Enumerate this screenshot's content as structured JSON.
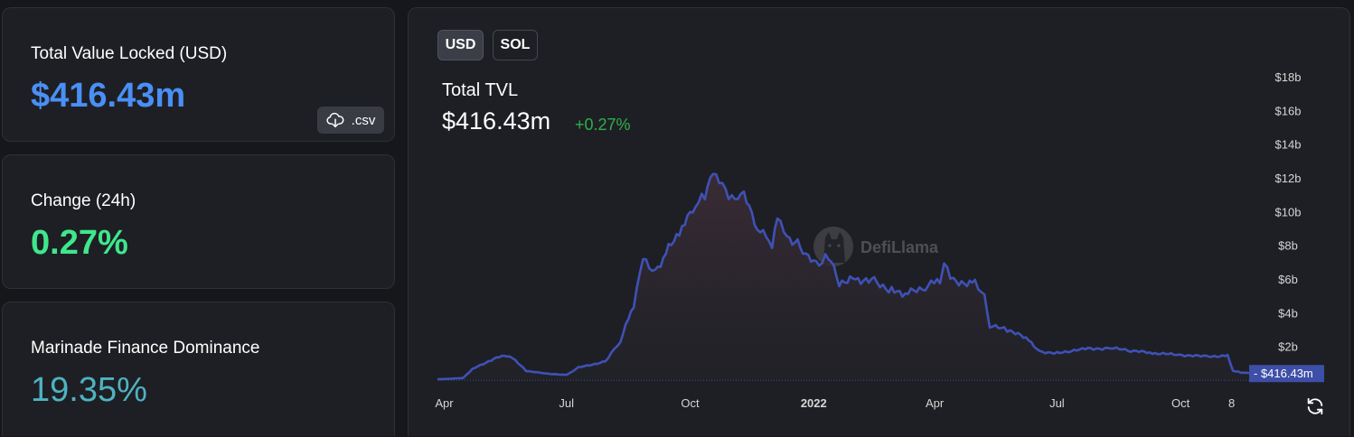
{
  "cards": {
    "tvl": {
      "label": "Total Value Locked (USD)",
      "value": "$416.43m",
      "csv_label": ".csv"
    },
    "change": {
      "label": "Change (24h)",
      "value": "0.27%"
    },
    "dominance": {
      "label": "Marinade Finance Dominance",
      "value": "19.35%"
    }
  },
  "toggles": {
    "usd": "USD",
    "sol": "SOL"
  },
  "header": {
    "title": "Total TVL",
    "value": "$416.43m",
    "change": "+0.27%"
  },
  "watermark": "DefiLlama",
  "colors": {
    "tvl_blue": "#4a8ff5",
    "change_green": "#3fe78c",
    "dominance_teal": "#4eb3c2",
    "line": "#3f51b5",
    "price_tag": "#3e4fa8",
    "positive": "#2eaf4a"
  },
  "icons": {
    "csv": "cloud-download-icon",
    "refresh": "refresh-icon",
    "logo": "llama-logo-icon"
  },
  "chart_data": {
    "type": "area",
    "title": "",
    "xlabel": "",
    "ylabel": "",
    "unit": "USD",
    "ylim": [
      0,
      18000000000
    ],
    "yticks": [
      "$2b",
      "$4b",
      "$6b",
      "$8b",
      "$10b",
      "$12b",
      "$14b",
      "$16b",
      "$18b"
    ],
    "xticks": [
      {
        "label": "Apr",
        "date": "2021-04-01"
      },
      {
        "label": "Jul",
        "date": "2021-07-01"
      },
      {
        "label": "Oct",
        "date": "2021-10-01"
      },
      {
        "label": "2022",
        "date": "2022-01-01",
        "bold": true
      },
      {
        "label": "Apr",
        "date": "2022-04-01"
      },
      {
        "label": "Jul",
        "date": "2022-07-01"
      },
      {
        "label": "Oct",
        "date": "2022-10-01"
      },
      {
        "label": "8",
        "date": "2022-11-08"
      }
    ],
    "price_label": "$416.43m",
    "last_value": 416430000,
    "series": [
      {
        "values": [
          [
            "2021-03-27",
            0.05
          ],
          [
            "2021-04-15",
            0.12
          ],
          [
            "2021-04-22",
            0.65
          ],
          [
            "2021-05-10",
            1.35
          ],
          [
            "2021-05-20",
            1.45
          ],
          [
            "2021-06-01",
            0.55
          ],
          [
            "2021-06-15",
            0.4
          ],
          [
            "2021-07-01",
            0.3
          ],
          [
            "2021-07-10",
            0.75
          ],
          [
            "2021-07-30",
            1.1
          ],
          [
            "2021-08-10",
            2.3
          ],
          [
            "2021-08-20",
            4.5
          ],
          [
            "2021-08-27",
            7.3
          ],
          [
            "2021-09-05",
            6.4
          ],
          [
            "2021-09-15",
            7.8
          ],
          [
            "2021-09-25",
            9.0
          ],
          [
            "2021-10-05",
            10.4
          ],
          [
            "2021-10-12",
            11.0
          ],
          [
            "2021-10-18",
            12.4
          ],
          [
            "2021-10-25",
            11.6
          ],
          [
            "2021-11-01",
            10.7
          ],
          [
            "2021-11-10",
            11.0
          ],
          [
            "2021-11-20",
            9.0
          ],
          [
            "2021-12-01",
            8.1
          ],
          [
            "2021-12-05",
            9.8
          ],
          [
            "2021-12-12",
            8.5
          ],
          [
            "2021-12-20",
            8.1
          ],
          [
            "2021-12-28",
            7.2
          ],
          [
            "2022-01-05",
            6.8
          ],
          [
            "2022-01-12",
            7.4
          ],
          [
            "2022-01-20",
            5.8
          ],
          [
            "2022-02-01",
            6.0
          ],
          [
            "2022-02-15",
            5.9
          ],
          [
            "2022-02-28",
            5.3
          ],
          [
            "2022-03-10",
            5.1
          ],
          [
            "2022-03-25",
            5.5
          ],
          [
            "2022-04-05",
            6.0
          ],
          [
            "2022-04-08",
            7.0
          ],
          [
            "2022-04-15",
            5.9
          ],
          [
            "2022-05-01",
            5.7
          ],
          [
            "2022-05-08",
            5.0
          ],
          [
            "2022-05-12",
            3.2
          ],
          [
            "2022-05-25",
            3.0
          ],
          [
            "2022-06-10",
            2.4
          ],
          [
            "2022-06-18",
            1.7
          ],
          [
            "2022-07-01",
            1.6
          ],
          [
            "2022-07-20",
            1.85
          ],
          [
            "2022-08-10",
            1.9
          ],
          [
            "2022-08-25",
            1.75
          ],
          [
            "2022-09-10",
            1.6
          ],
          [
            "2022-09-30",
            1.5
          ],
          [
            "2022-10-20",
            1.4
          ],
          [
            "2022-11-05",
            1.45
          ],
          [
            "2022-11-09",
            0.55
          ],
          [
            "2022-11-15",
            0.45
          ],
          [
            "2022-11-21",
            0.4164
          ]
        ]
      }
    ],
    "value_scale": "billions USD"
  }
}
